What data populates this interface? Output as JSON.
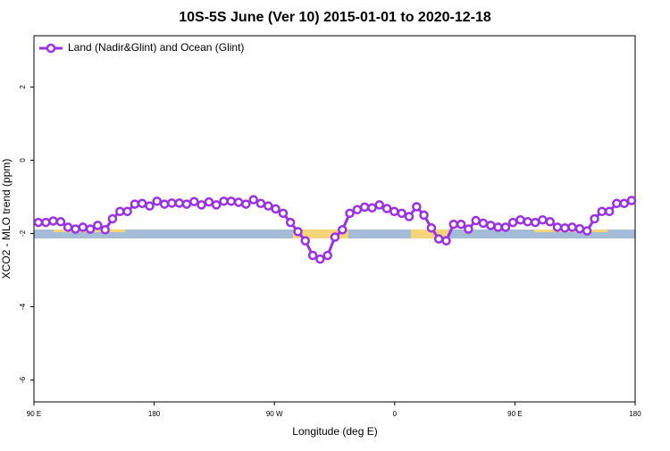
{
  "chart_data": {
    "type": "line",
    "title": "10S-5S June (Ver 10)   2015-01-01 to 2020-12-18",
    "x_label": "Longitude (deg E)",
    "y_label": "XCO2 - MLO trend (ppm)",
    "xlim": [
      90,
      540
    ],
    "ylim": [
      -6.6,
      3.4
    ],
    "xticks": [
      {
        "value": 90,
        "label": "90 E"
      },
      180,
      {
        "value": 270,
        "label": "90 W"
      },
      {
        "value": 360,
        "label": "0"
      },
      {
        "value": 450,
        "label": "90 E"
      },
      {
        "value": 540,
        "label": "180"
      }
    ],
    "yticks": [
      2,
      0,
      -2,
      -4,
      -6
    ],
    "grid": false,
    "legend": "top-left",
    "x": [
      93.3,
      98.9,
      104.4,
      110.0,
      115.5,
      121.1,
      126.6,
      132.2,
      137.7,
      143.3,
      148.8,
      154.4,
      159.9,
      165.5,
      171.0,
      176.6,
      182.1,
      187.7,
      193.2,
      198.8,
      204.3,
      209.9,
      215.4,
      221.0,
      226.5,
      232.1,
      237.6,
      243.2,
      248.7,
      254.3,
      259.8,
      265.4,
      270.9,
      276.5,
      282.0,
      287.6,
      293.1,
      298.7,
      304.2,
      309.8,
      315.3,
      320.9,
      326.4,
      332.0,
      337.5,
      343.1,
      348.6,
      354.2,
      359.7,
      365.3,
      370.8,
      376.4,
      381.9,
      387.5,
      393.0,
      398.6,
      404.1,
      409.7,
      415.2,
      420.8,
      426.3,
      431.9,
      437.4,
      443.0,
      448.5,
      454.1,
      459.6,
      465.2,
      470.7,
      476.3,
      481.8,
      487.4,
      492.9,
      498.5,
      504.0,
      509.6,
      515.1,
      520.7,
      526.2,
      531.8,
      537.3
    ],
    "series": [
      {
        "name": "Land (Nadir&Glint) and Ocean (Glint)",
        "color": "#9b30e8",
        "values": [
          -1.7,
          -1.7,
          -1.66,
          -1.68,
          -1.83,
          -1.88,
          -1.83,
          -1.88,
          -1.78,
          -1.9,
          -1.6,
          -1.4,
          -1.4,
          -1.2,
          -1.18,
          -1.25,
          -1.12,
          -1.2,
          -1.17,
          -1.17,
          -1.2,
          -1.13,
          -1.22,
          -1.14,
          -1.22,
          -1.12,
          -1.12,
          -1.15,
          -1.2,
          -1.08,
          -1.18,
          -1.25,
          -1.33,
          -1.45,
          -1.7,
          -1.95,
          -2.2,
          -2.6,
          -2.7,
          -2.6,
          -2.1,
          -1.9,
          -1.45,
          -1.35,
          -1.28,
          -1.3,
          -1.22,
          -1.32,
          -1.4,
          -1.45,
          -1.54,
          -1.27,
          -1.5,
          -1.85,
          -2.15,
          -2.2,
          -1.75,
          -1.75,
          -1.88,
          -1.65,
          -1.72,
          -1.78,
          -1.83,
          -1.83,
          -1.7,
          -1.63,
          -1.68,
          -1.7,
          -1.63,
          -1.68,
          -1.83,
          -1.85,
          -1.83,
          -1.87,
          -1.93,
          -1.6,
          -1.4,
          -1.4,
          -1.18,
          -1.18,
          -1.1
        ]
      }
    ]
  }
}
